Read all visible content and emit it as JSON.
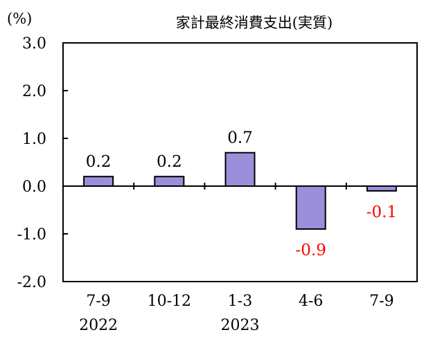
{
  "chart_data": {
    "type": "bar",
    "title": "家計最終消費支出(実質)",
    "unit_label": "(%)",
    "categories": [
      "7-9",
      "10-12",
      "1-3",
      "4-6",
      "7-9"
    ],
    "year_labels": [
      "2022",
      "",
      "2023",
      "",
      ""
    ],
    "values": [
      0.2,
      0.2,
      0.7,
      -0.9,
      -0.1
    ],
    "data_labels": [
      "0.2",
      "0.2",
      "0.7",
      "-0.9",
      "-0.1"
    ],
    "ylim": [
      -2.0,
      3.0
    ],
    "yticks": [
      "3.0",
      "2.0",
      "1.0",
      "0.0",
      "-1.0",
      "-2.0"
    ],
    "ytick_values": [
      3.0,
      2.0,
      1.0,
      0.0,
      -1.0,
      -2.0
    ],
    "bar_color": "#9b8fdc",
    "bar_edge_color": "#000000",
    "positive_label_color": "#000000",
    "negative_label_color": "#ff0000",
    "grid": false,
    "legend": "none"
  }
}
